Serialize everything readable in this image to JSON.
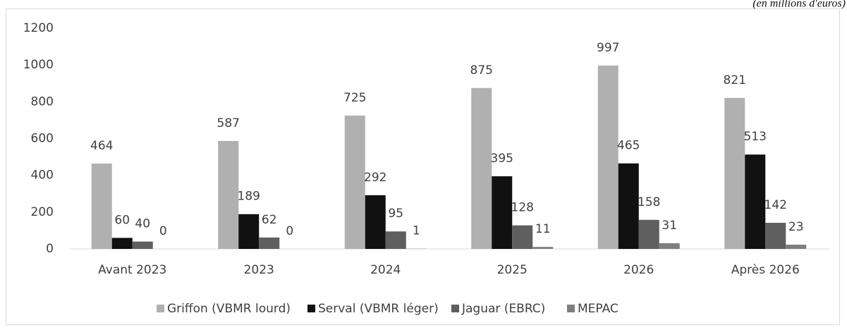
{
  "chart_data": {
    "type": "bar",
    "subtitle": "(en millions d'euros)",
    "categories": [
      "Avant 2023",
      "2023",
      "2024",
      "2025",
      "2026",
      "Après 2026"
    ],
    "series": [
      {
        "name": "Griffon (VBMR lourd)",
        "color": "#b0b0b0",
        "values": [
          464,
          587,
          725,
          875,
          997,
          821
        ]
      },
      {
        "name": "Serval (VBMR léger)",
        "color": "#111111",
        "values": [
          60,
          189,
          292,
          395,
          465,
          513
        ]
      },
      {
        "name": "Jaguar (EBRC)",
        "color": "#5f5f5f",
        "values": [
          40,
          62,
          95,
          128,
          158,
          142
        ]
      },
      {
        "name": "MEPAC",
        "color": "#7f7f7f",
        "values": [
          0,
          0,
          1,
          11,
          31,
          23
        ]
      }
    ],
    "ylim": [
      0,
      1200
    ],
    "yticks": [
      0,
      200,
      400,
      600,
      800,
      1000,
      1200
    ],
    "grid": false,
    "legend": "bottom"
  }
}
